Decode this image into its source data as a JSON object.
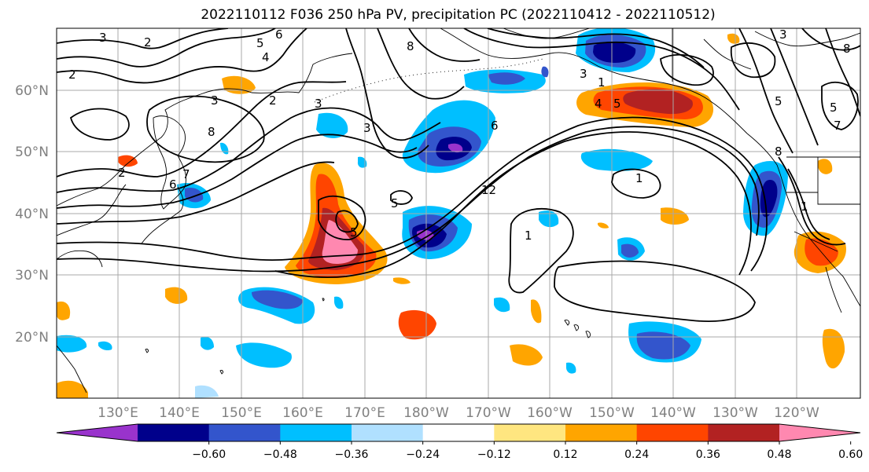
{
  "title": "2022110112 F036 250 hPa PV, precipitation PC (2022110412 - 2022110512)",
  "lat_labels": [
    "60°N",
    "50°N",
    "40°N",
    "30°N",
    "20°N"
  ],
  "lon_labels": [
    "130°E",
    "140°E",
    "150°E",
    "160°E",
    "170°E",
    "180°W",
    "170°W",
    "160°W",
    "150°W",
    "140°W",
    "130°W",
    "120°W"
  ],
  "colorbar": {
    "ticks": [
      "−0.60",
      "−0.48",
      "−0.36",
      "−0.24",
      "−0.12",
      "0.12",
      "0.24",
      "0.36",
      "0.48",
      "0.60"
    ],
    "colors": [
      "#9933cc",
      "#00008b",
      "#3355cc",
      "#00bfff",
      "#b0e0ff",
      "#ffffff",
      "#ffe680",
      "#ffa500",
      "#ff4500",
      "#b22222",
      "#ff88b0"
    ]
  },
  "contour_labels": [
    "3",
    "2",
    "6",
    "5",
    "4",
    "8",
    "2",
    "3",
    "2",
    "3",
    "8",
    "6",
    "7",
    "3",
    "5",
    "6",
    "12",
    "1",
    "1",
    "5",
    "3",
    "5",
    "4",
    "3",
    "5",
    "8",
    "7",
    "8",
    "5",
    "1",
    "2",
    "1"
  ]
}
